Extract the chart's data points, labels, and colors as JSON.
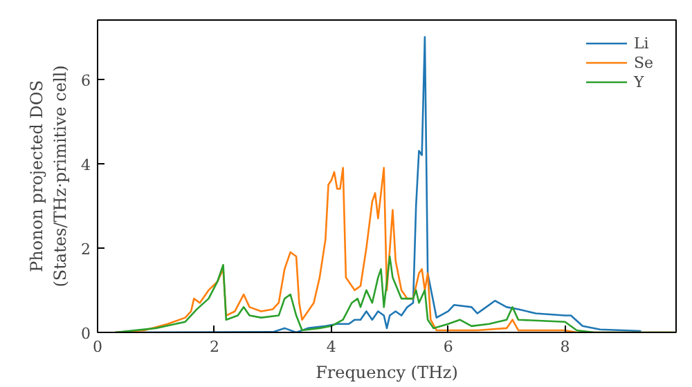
{
  "chart_data": {
    "type": "line",
    "xlabel": "Frequency (THz)",
    "ylabel": "Phonon projected DOS\n(States/THz·primitive cell)",
    "xlim": [
      0,
      9.9
    ],
    "ylim": [
      0,
      7.4
    ],
    "xticks": [
      0,
      2,
      4,
      6,
      8
    ],
    "yticks": [
      0,
      2,
      4,
      6
    ],
    "grid": false,
    "legend": "top right",
    "marker": "none",
    "line_style": "solid",
    "series": [
      {
        "name": "Li",
        "color": "#1f77b4",
        "x": [
          0.3,
          3.0,
          3.2,
          3.4,
          3.6,
          3.9,
          4.1,
          4.3,
          4.4,
          4.5,
          4.6,
          4.7,
          4.8,
          4.9,
          4.95,
          5.0,
          5.1,
          5.2,
          5.3,
          5.4,
          5.45,
          5.5,
          5.55,
          5.6,
          5.65,
          5.8,
          6.0,
          6.1,
          6.4,
          6.5,
          6.6,
          6.8,
          7.0,
          7.2,
          7.5,
          8.0,
          8.1,
          8.3,
          8.6,
          9.0,
          9.3
        ],
        "values": [
          0,
          0.01,
          0.1,
          0.0,
          0.1,
          0.15,
          0.2,
          0.2,
          0.3,
          0.3,
          0.5,
          0.3,
          0.5,
          0.4,
          0.1,
          0.4,
          0.5,
          0.4,
          0.6,
          0.7,
          3.0,
          4.3,
          4.2,
          7.0,
          1.4,
          0.35,
          0.5,
          0.65,
          0.6,
          0.45,
          0.55,
          0.75,
          0.6,
          0.55,
          0.45,
          0.4,
          0.4,
          0.15,
          0.07,
          0.05,
          0.03
        ]
      },
      {
        "name": "Se",
        "color": "#ff7f0e",
        "x": [
          0.3,
          0.8,
          1.2,
          1.5,
          1.6,
          1.65,
          1.75,
          1.9,
          2.05,
          2.15,
          2.2,
          2.35,
          2.5,
          2.6,
          2.8,
          3.0,
          3.1,
          3.2,
          3.3,
          3.4,
          3.45,
          3.5,
          3.7,
          3.8,
          3.9,
          3.95,
          4.0,
          4.05,
          4.1,
          4.15,
          4.2,
          4.25,
          4.4,
          4.5,
          4.6,
          4.7,
          4.75,
          4.8,
          4.9,
          4.95,
          5.05,
          5.1,
          5.2,
          5.3,
          5.4,
          5.5,
          5.55,
          5.6,
          5.65,
          5.7,
          5.8,
          6.5,
          7.0,
          7.1,
          7.2,
          8.0,
          8.2,
          9.9
        ],
        "values": [
          0,
          0.05,
          0.2,
          0.35,
          0.5,
          0.8,
          0.7,
          1.0,
          1.2,
          1.5,
          0.4,
          0.5,
          0.9,
          0.6,
          0.5,
          0.55,
          0.7,
          1.5,
          1.9,
          1.8,
          0.7,
          0.3,
          0.7,
          1.3,
          2.2,
          3.5,
          3.6,
          3.8,
          3.4,
          3.4,
          3.9,
          1.3,
          1.0,
          1.1,
          2.0,
          3.1,
          3.3,
          2.7,
          3.9,
          1.0,
          2.9,
          1.7,
          1.0,
          0.8,
          0.8,
          1.4,
          1.5,
          1.0,
          1.4,
          0.3,
          0.05,
          0.05,
          0.1,
          0.3,
          0.05,
          0.05,
          0,
          0
        ]
      },
      {
        "name": "Y",
        "color": "#2ca02c",
        "x": [
          0.3,
          1.0,
          1.5,
          1.7,
          1.9,
          2.05,
          2.15,
          2.2,
          2.4,
          2.5,
          2.6,
          2.8,
          3.1,
          3.2,
          3.3,
          3.4,
          3.5,
          3.8,
          4.0,
          4.2,
          4.35,
          4.45,
          4.5,
          4.6,
          4.7,
          4.8,
          4.85,
          4.9,
          5.0,
          5.05,
          5.2,
          5.4,
          5.45,
          5.5,
          5.6,
          5.65,
          5.75,
          6.0,
          6.2,
          6.4,
          6.7,
          7.0,
          7.1,
          7.2,
          8.0,
          8.2,
          8.5,
          9.9
        ],
        "values": [
          0,
          0.1,
          0.25,
          0.55,
          0.8,
          1.2,
          1.6,
          0.3,
          0.4,
          0.6,
          0.4,
          0.35,
          0.4,
          0.8,
          0.9,
          0.4,
          0.05,
          0.1,
          0.15,
          0.3,
          0.7,
          0.8,
          0.6,
          1.0,
          0.7,
          1.3,
          1.5,
          0.6,
          1.8,
          1.3,
          0.8,
          0.8,
          1.0,
          0.7,
          1.0,
          0.3,
          0.1,
          0.2,
          0.3,
          0.15,
          0.2,
          0.3,
          0.6,
          0.3,
          0.25,
          0.05,
          0,
          0
        ]
      }
    ]
  }
}
